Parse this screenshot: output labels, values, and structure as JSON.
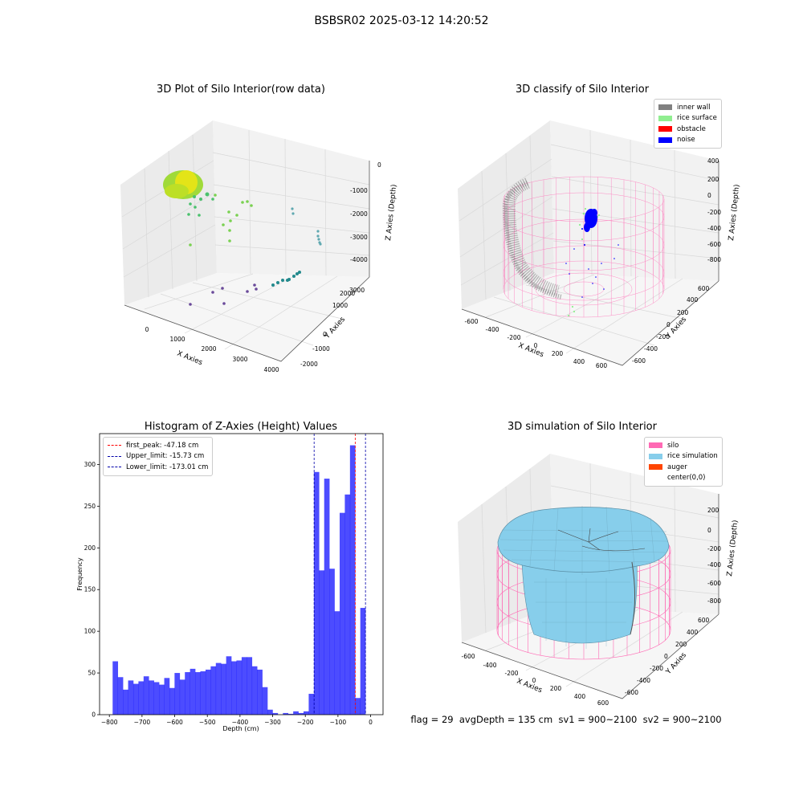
{
  "suptitle": "BSBSR02 2025-03-12 14:20:52",
  "footer": "flag = 29  avgDepth = 135 cm  sv1 = 900~2100  sv2 = 900~2100",
  "chart_data": [
    {
      "type": "scatter3d",
      "title": "3D Plot of Silo Interior(row data)",
      "xlabel": "X Axies",
      "ylabel": "Y Axies",
      "zlabel": "Z Axies (Depth)",
      "x_ticks": [
        "0",
        "1000",
        "2000",
        "3000",
        "4000"
      ],
      "y_ticks": [
        "-2000",
        "-1000",
        "0",
        "1000",
        "2000",
        "3000"
      ],
      "z_ticks": [
        "0",
        "-1000",
        "-2000",
        "-3000",
        "-4000"
      ],
      "colormap": "viridis"
    },
    {
      "type": "scatter3d",
      "title": "3D classify of Silo Interior",
      "xlabel": "X Axies",
      "ylabel": "Y Axies",
      "zlabel": "Z Axies (Depth)",
      "x_ticks": [
        "-600",
        "-400",
        "-200",
        "0",
        "200",
        "400",
        "600"
      ],
      "y_ticks": [
        "-600",
        "-400",
        "-200",
        "0",
        "200",
        "400",
        "600"
      ],
      "z_ticks": [
        "400",
        "200",
        "0",
        "-200",
        "-400",
        "-600",
        "-800"
      ],
      "legend": [
        {
          "label": "inner wall",
          "color": "#808080"
        },
        {
          "label": "rice surface",
          "color": "#90ee90"
        },
        {
          "label": "obstacle",
          "color": "#ff0000"
        },
        {
          "label": "noise",
          "color": "#0000ff"
        }
      ],
      "legend_position": "top-right"
    },
    {
      "type": "bar",
      "title": "Histogram of Z-Axies (Height) Values",
      "xlabel": "Depth (cm)",
      "ylabel": "Frequency",
      "xlim": [
        -830,
        38
      ],
      "ylim": [
        0,
        337
      ],
      "x_ticks": [
        -800,
        -700,
        -600,
        -500,
        -400,
        -300,
        -200,
        -100,
        0
      ],
      "y_ticks": [
        0,
        50,
        100,
        150,
        200,
        250,
        300
      ],
      "bin_start": -790,
      "bin_width": 15.8,
      "color": "#0000ff",
      "values": [
        64,
        45,
        30,
        41,
        37,
        40,
        46,
        41,
        39,
        36,
        44,
        32,
        50,
        42,
        51,
        55,
        51,
        52,
        54,
        58,
        62,
        61,
        70,
        64,
        65,
        69,
        69,
        58,
        54,
        33,
        6,
        2,
        0,
        2,
        1,
        4,
        2,
        4,
        25,
        291,
        173,
        283,
        175,
        124,
        242,
        264,
        323,
        20,
        128
      ],
      "vlines": [
        {
          "label": "first_peak: -47.18 cm",
          "x": -47.18,
          "color": "#ff0000"
        },
        {
          "label": "Upper_limit: -15.73 cm",
          "x": -15.73,
          "color": "#0000aa"
        },
        {
          "label": "Lower_limit: -173.01 cm",
          "x": -173.01,
          "color": "#0000aa"
        }
      ],
      "legend_position": "top-left"
    },
    {
      "type": "surface3d",
      "title": "3D simulation of Silo Interior",
      "xlabel": "X Axies",
      "ylabel": "Y Axies",
      "zlabel": "Z Axies (Depth)",
      "x_ticks": [
        "-600",
        "-400",
        "-200",
        "0",
        "200",
        "400",
        "600"
      ],
      "y_ticks": [
        "-600",
        "-400",
        "-200",
        "0",
        "200",
        "400",
        "600"
      ],
      "z_ticks": [
        "200",
        "0",
        "-200",
        "-400",
        "-600",
        "-800"
      ],
      "legend": [
        {
          "label": "silo",
          "color": "#ff69b4"
        },
        {
          "label": "rice simulation",
          "color": "#87ceeb"
        },
        {
          "label": "auger",
          "color": "#ff4500"
        },
        {
          "label": "center(0,0)",
          "color": "#ffffff"
        }
      ],
      "legend_position": "top-right"
    }
  ]
}
